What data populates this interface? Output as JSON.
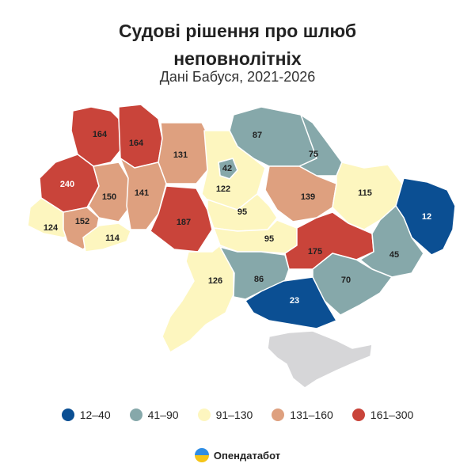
{
  "header": {
    "title_line1": "Судові рішення про шлюб",
    "title_line2": "неповнолітніх",
    "subtitle": "Дані Бабуся, 2021-2026"
  },
  "colors": {
    "c1": "#0b4f93",
    "c2": "#86a8aa",
    "c3": "#fdf6bf",
    "c4": "#dea07f",
    "c5": "#c9443a",
    "crimea": "#d6d6d8"
  },
  "legend": [
    {
      "label": "12–40",
      "color": "#0b4f93"
    },
    {
      "label": "41–90",
      "color": "#86a8aa"
    },
    {
      "label": "91–130",
      "color": "#fdf6bf"
    },
    {
      "label": "131–160",
      "color": "#dea07f"
    },
    {
      "label": "161–300",
      "color": "#c9443a"
    }
  ],
  "regions": [
    {
      "label": "164",
      "value": 164,
      "class": "c5"
    },
    {
      "label": "164",
      "value": 164,
      "class": "c5"
    },
    {
      "label": "131",
      "value": 131,
      "class": "c4"
    },
    {
      "label": "87",
      "value": 87,
      "class": "c2"
    },
    {
      "label": "75",
      "value": 75,
      "class": "c2"
    },
    {
      "label": "42",
      "value": 42,
      "class": "c2"
    },
    {
      "label": "122",
      "value": 122,
      "class": "c3"
    },
    {
      "label": "240",
      "value": 240,
      "class": "c5"
    },
    {
      "label": "150",
      "value": 150,
      "class": "c4"
    },
    {
      "label": "141",
      "value": 141,
      "class": "c4"
    },
    {
      "label": "187",
      "value": 187,
      "class": "c5"
    },
    {
      "label": "139",
      "value": 139,
      "class": "c4"
    },
    {
      "label": "115",
      "value": 115,
      "class": "c3"
    },
    {
      "label": "12",
      "value": 12,
      "class": "c1"
    },
    {
      "label": "124",
      "value": 124,
      "class": "c3"
    },
    {
      "label": "152",
      "value": 152,
      "class": "c4"
    },
    {
      "label": "114",
      "value": 114,
      "class": "c3"
    },
    {
      "label": "95",
      "value": 95,
      "class": "c3"
    },
    {
      "label": "95",
      "value": 95,
      "class": "c3"
    },
    {
      "label": "175",
      "value": 175,
      "class": "c5"
    },
    {
      "label": "45",
      "value": 45,
      "class": "c2"
    },
    {
      "label": "126",
      "value": 126,
      "class": "c3"
    },
    {
      "label": "86",
      "value": 86,
      "class": "c2"
    },
    {
      "label": "70",
      "value": 70,
      "class": "c2"
    },
    {
      "label": "23",
      "value": 23,
      "class": "c1"
    }
  ],
  "brand": {
    "name": "Опендатабот",
    "logo_icon": "opendatabot-logo-icon"
  }
}
